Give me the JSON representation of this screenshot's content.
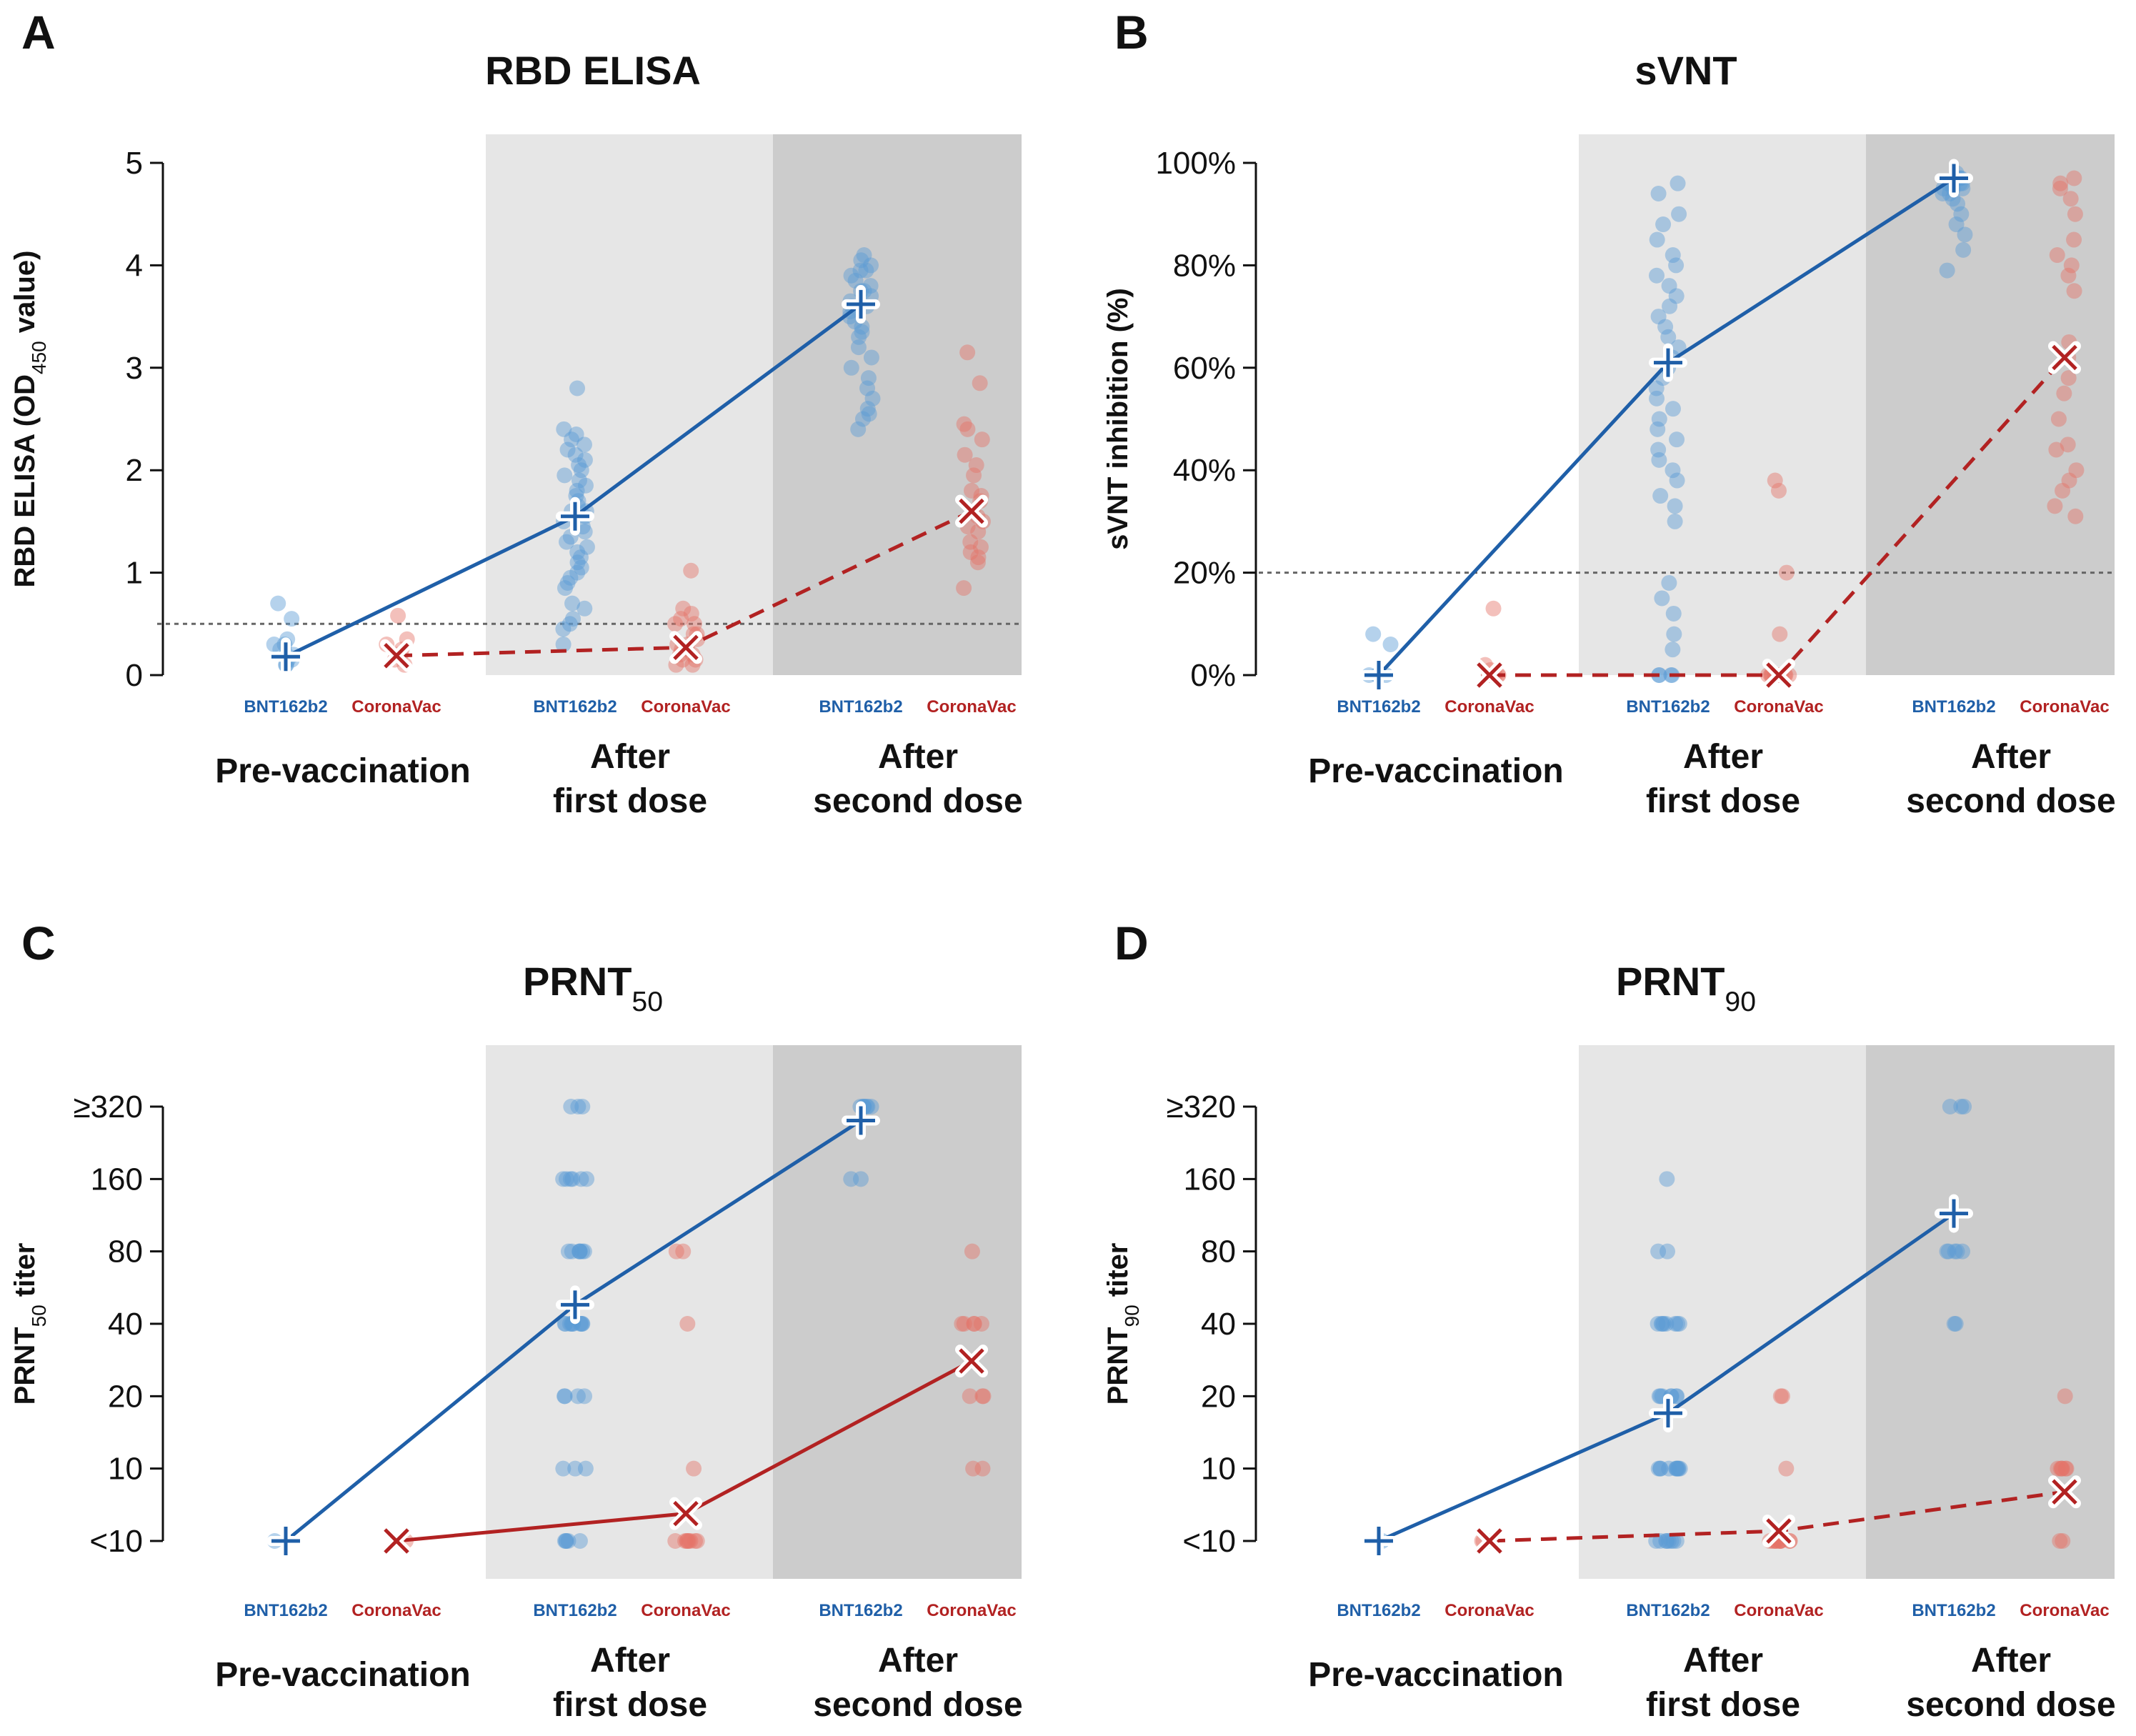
{
  "colors": {
    "bnt": "#1f5fa8",
    "bnt_point": "#5b9bd5",
    "coronavac": "#b22222",
    "coronavac_point": "#e57368",
    "shade_first": "#e6e6e6",
    "shade_second": "#cccccc",
    "threshold": "#666666"
  },
  "groups": [
    "BNT162b2",
    "CoronaVac"
  ],
  "phases": [
    {
      "lines": [
        "Pre-vaccination"
      ]
    },
    {
      "lines": [
        "After",
        "first dose"
      ]
    },
    {
      "lines": [
        "After",
        "second dose"
      ]
    }
  ],
  "chart_data": [
    {
      "type": "scatter",
      "panel": "A",
      "title": "RBD ELISA",
      "title_subscript": "",
      "ylabel": "RBD ELISA (OD",
      "ylabel_subscript": "450",
      "ylabel_suffix": " value)",
      "scale": "linear",
      "ylim": [
        0,
        5
      ],
      "yticks": [
        0,
        1,
        2,
        3,
        4,
        5
      ],
      "ytick_labels": [
        "0",
        "1",
        "2",
        "3",
        "4",
        "5"
      ],
      "threshold": 0.5,
      "series": [
        {
          "name": "BNT162b2",
          "marker": "plus",
          "line": "solid",
          "points": [
            [
              0.7,
              0.55,
              0.35,
              0.3,
              0.25,
              0.2,
              0.15,
              0.1,
              0.1,
              0.2,
              0.3,
              0.15
            ],
            [
              2.8,
              2.4,
              2.3,
              2.25,
              2.2,
              2.1,
              2.05,
              2.0,
              1.95,
              1.9,
              1.85,
              1.8,
              1.75,
              1.7,
              1.65,
              1.6,
              1.55,
              1.5,
              1.45,
              1.4,
              1.35,
              1.3,
              1.25,
              1.2,
              1.15,
              1.1,
              1.05,
              1.0,
              0.95,
              0.9,
              0.85,
              0.7,
              0.65,
              0.55,
              0.5,
              0.45,
              0.3,
              2.35,
              2.15,
              1.6
            ],
            [
              4.1,
              4.05,
              4.0,
              3.95,
              3.9,
              3.85,
              3.8,
              3.75,
              3.7,
              3.65,
              3.6,
              3.55,
              3.5,
              3.45,
              3.4,
              3.35,
              3.3,
              3.2,
              3.1,
              3.0,
              2.9,
              2.8,
              2.7,
              2.6,
              2.55,
              2.5,
              2.4,
              3.75,
              3.95,
              3.6
            ]
          ],
          "means": [
            0.18,
            1.55,
            3.62
          ]
        },
        {
          "name": "CoronaVac",
          "marker": "x",
          "line": "dashed",
          "points": [
            [
              0.58,
              0.35,
              0.25,
              0.2,
              0.15,
              0.1,
              0.2,
              0.3
            ],
            [
              1.02,
              0.65,
              0.6,
              0.55,
              0.5,
              0.4,
              0.35,
              0.3,
              0.25,
              0.2,
              0.15,
              0.1,
              0.1,
              0.15,
              0.2,
              0.3,
              0.4,
              0.5
            ],
            [
              3.15,
              2.85,
              2.45,
              2.4,
              2.3,
              2.15,
              2.05,
              1.95,
              1.8,
              1.75,
              1.7,
              1.6,
              1.55,
              1.45,
              1.4,
              1.3,
              1.25,
              1.2,
              1.15,
              1.1,
              0.85,
              1.5
            ]
          ],
          "means": [
            0.19,
            0.27,
            1.6
          ]
        }
      ]
    },
    {
      "type": "scatter",
      "panel": "B",
      "title": "sVNT",
      "title_subscript": "",
      "ylabel": "sVNT inhibition (%)",
      "ylabel_subscript": "",
      "ylabel_suffix": "",
      "scale": "linear",
      "ylim": [
        0,
        100
      ],
      "yticks": [
        0,
        20,
        40,
        60,
        80,
        100
      ],
      "ytick_labels": [
        "0%",
        "20%",
        "40%",
        "60%",
        "80%",
        "100%"
      ],
      "threshold": 20,
      "series": [
        {
          "name": "BNT162b2",
          "marker": "plus",
          "line": "solid",
          "points": [
            [
              8,
              6,
              0,
              0,
              0
            ],
            [
              96,
              94,
              90,
              88,
              85,
              82,
              80,
              78,
              76,
              74,
              72,
              70,
              68,
              66,
              64,
              62,
              60,
              58,
              56,
              54,
              52,
              50,
              48,
              46,
              44,
              42,
              40,
              38,
              35,
              33,
              30,
              18,
              15,
              12,
              8,
              5,
              0,
              0,
              0,
              0
            ],
            [
              98,
              97,
              97,
              96,
              96,
              96,
              95,
              95,
              95,
              94,
              94,
              93,
              92,
              90,
              88,
              86,
              83,
              79,
              97,
              96
            ]
          ],
          "means": [
            0,
            61,
            97
          ]
        },
        {
          "name": "CoronaVac",
          "marker": "x",
          "line": "dashed",
          "points": [
            [
              13,
              2,
              1,
              0,
              0,
              0,
              0,
              0,
              0
            ],
            [
              38,
              36,
              20,
              8,
              0,
              0,
              0,
              0,
              0,
              0,
              0,
              0,
              0,
              0,
              0,
              0,
              0
            ],
            [
              97,
              96,
              95,
              93,
              90,
              85,
              82,
              80,
              78,
              75,
              65,
              62,
              58,
              55,
              50,
              45,
              44,
              40,
              38,
              36,
              33,
              31
            ]
          ],
          "means": [
            0,
            0,
            62
          ]
        }
      ]
    },
    {
      "type": "scatter",
      "panel": "C",
      "title": "PRNT",
      "title_subscript": "50",
      "ylabel": "PRNT",
      "ylabel_subscript": "50",
      "ylabel_suffix": " titer",
      "scale": "log2",
      "ylim": [
        5,
        320
      ],
      "yticks": [
        5,
        10,
        20,
        40,
        80,
        160,
        320
      ],
      "ytick_labels": [
        "<10",
        "10",
        "20",
        "40",
        "80",
        "160",
        "≥320"
      ],
      "threshold": null,
      "series": [
        {
          "name": "BNT162b2",
          "marker": "plus",
          "line": "solid",
          "points": [
            [
              5
            ],
            [
              320,
              320,
              320,
              160,
              160,
              160,
              160,
              160,
              160,
              80,
              80,
              80,
              80,
              80,
              80,
              80,
              40,
              40,
              40,
              40,
              40,
              40,
              40,
              40,
              40,
              40,
              20,
              20,
              20,
              20,
              10,
              10,
              10,
              5,
              5,
              5,
              5,
              5
            ],
            [
              320,
              320,
              320,
              320,
              320,
              320,
              320,
              160,
              160
            ]
          ],
          "means": [
            5,
            48,
            280
          ]
        },
        {
          "name": "CoronaVac",
          "marker": "x",
          "line": "solid",
          "points": [
            [
              5
            ],
            [
              80,
              80,
              40,
              10,
              5,
              5,
              5,
              5,
              5,
              5,
              5,
              5
            ],
            [
              80,
              40,
              40,
              40,
              40,
              40,
              20,
              20,
              20,
              10,
              10
            ]
          ],
          "means": [
            5,
            6.5,
            28
          ]
        }
      ]
    },
    {
      "type": "scatter",
      "panel": "D",
      "title": "PRNT",
      "title_subscript": "90",
      "ylabel": "PRNT",
      "ylabel_subscript": "90",
      "ylabel_suffix": " titer",
      "scale": "log2",
      "ylim": [
        5,
        320
      ],
      "yticks": [
        5,
        10,
        20,
        40,
        80,
        160,
        320
      ],
      "ytick_labels": [
        "<10",
        "10",
        "20",
        "40",
        "80",
        "160",
        "≥320"
      ],
      "threshold": null,
      "series": [
        {
          "name": "BNT162b2",
          "marker": "plus",
          "line": "solid",
          "points": [
            [
              5
            ],
            [
              160,
              80,
              80,
              40,
              40,
              40,
              40,
              40,
              40,
              40,
              40,
              20,
              20,
              20,
              20,
              20,
              20,
              20,
              10,
              10,
              10,
              10,
              10,
              10,
              10,
              10,
              10,
              10,
              5,
              5,
              5,
              5,
              5,
              5,
              5,
              5
            ],
            [
              320,
              320,
              320,
              80,
              80,
              80,
              80,
              80,
              40,
              40
            ]
          ],
          "means": [
            5,
            17,
            115
          ]
        },
        {
          "name": "CoronaVac",
          "marker": "x",
          "line": "dashed",
          "points": [
            [
              5,
              5,
              5
            ],
            [
              20,
              20,
              10,
              5,
              5,
              5,
              5,
              5,
              5,
              5,
              5,
              5,
              5,
              5
            ],
            [
              20,
              10,
              10,
              10,
              10,
              10,
              10,
              5,
              5
            ]
          ],
          "means": [
            5,
            5.5,
            8
          ]
        }
      ]
    }
  ]
}
